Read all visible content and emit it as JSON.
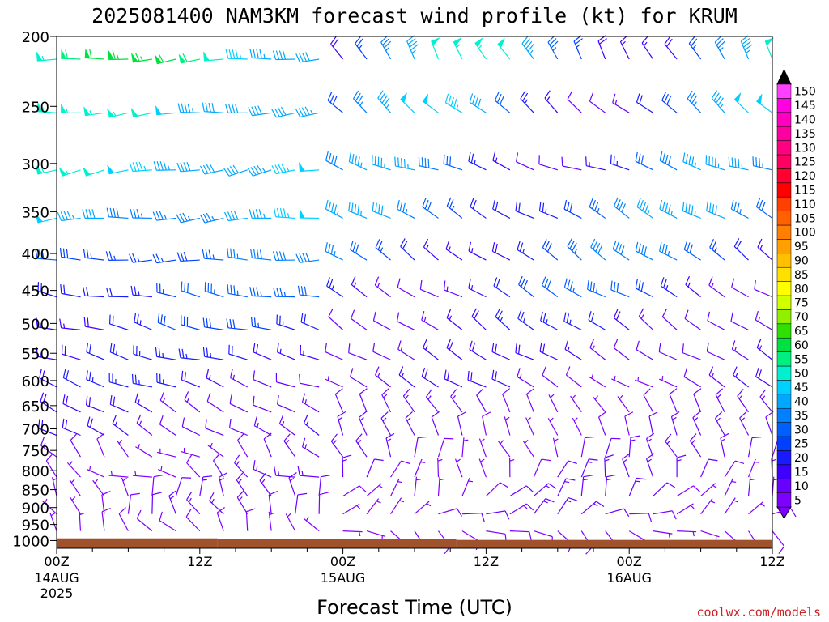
{
  "chart_data": {
    "type": "wind-barb-profile",
    "title": "2025081400 NAM3KM forecast wind profile (kt) for KRUM",
    "xlabel": "Forecast Time (UTC)",
    "ylabel": "",
    "credit": "coolwx.com/models",
    "units": "kt",
    "x_ticks": [
      {
        "hour": 0,
        "label": "00Z",
        "sub": "14AUG",
        "sub2": "2025"
      },
      {
        "hour": 12,
        "label": "12Z",
        "sub": "",
        "sub2": ""
      },
      {
        "hour": 24,
        "label": "00Z",
        "sub": "15AUG",
        "sub2": ""
      },
      {
        "hour": 36,
        "label": "12Z",
        "sub": "",
        "sub2": ""
      },
      {
        "hour": 48,
        "label": "00Z",
        "sub": "16AUG",
        "sub2": ""
      },
      {
        "hour": 60,
        "label": "12Z",
        "sub": "",
        "sub2": ""
      }
    ],
    "xlim_hours": [
      0,
      60
    ],
    "pressure_levels": [
      200,
      250,
      300,
      350,
      400,
      450,
      500,
      550,
      600,
      650,
      700,
      750,
      800,
      850,
      900,
      950,
      1000
    ],
    "ylim_hPa": [
      200,
      1025
    ],
    "colorbar_levels": [
      5,
      10,
      15,
      20,
      25,
      30,
      35,
      40,
      45,
      50,
      55,
      60,
      65,
      70,
      75,
      80,
      85,
      90,
      95,
      100,
      105,
      110,
      115,
      120,
      125,
      130,
      135,
      140,
      145,
      150
    ],
    "colorbar_colors": [
      "#8000ff",
      "#6a00ff",
      "#3f00ff",
      "#1a1aff",
      "#0040ff",
      "#0060ff",
      "#0080ff",
      "#00a8ff",
      "#00d0ff",
      "#00f0d0",
      "#00f080",
      "#00e040",
      "#30e000",
      "#90f000",
      "#d0ff00",
      "#ffff00",
      "#ffe000",
      "#ffc000",
      "#ffa000",
      "#ff8000",
      "#ff6000",
      "#ff4000",
      "#ff0000",
      "#ff0030",
      "#ff0060",
      "#ff0080",
      "#ff00a0",
      "#ff00c0",
      "#ff00e0",
      "#ff40ff"
    ],
    "ground_surface": [
      {
        "from_hour": 0,
        "to_hour": 13.5,
        "pressure_hPa": 993
      },
      {
        "from_hour": 13.5,
        "to_hour": 24.5,
        "pressure_hPa": 995
      },
      {
        "from_hour": 24.5,
        "to_hour": 33.5,
        "pressure_hPa": 996
      },
      {
        "from_hour": 33.5,
        "to_hour": 60,
        "pressure_hPa": 998
      }
    ],
    "wind_profile_summary": [
      {
        "pressure_hPa": 200,
        "hours_0_23_dir_deg": 265,
        "hours_0_23_speed_kt": [
          40,
          65
        ],
        "hours_24_60_dir_deg": 330,
        "hours_24_60_speed_kt": [
          15,
          55
        ]
      },
      {
        "pressure_hPa": 250,
        "hours_0_23_dir_deg": 265,
        "hours_0_23_speed_kt": [
          40,
          55
        ],
        "hours_24_60_dir_deg": 310,
        "hours_24_60_speed_kt": [
          10,
          50
        ]
      },
      {
        "pressure_hPa": 300,
        "hours_0_23_dir_deg": 260,
        "hours_0_23_speed_kt": [
          40,
          55
        ],
        "hours_24_60_dir_deg": 290,
        "hours_24_60_speed_kt": [
          10,
          45
        ]
      },
      {
        "pressure_hPa": 350,
        "hours_0_23_dir_deg": 265,
        "hours_0_23_speed_kt": [
          35,
          50
        ],
        "hours_24_60_dir_deg": 300,
        "hours_24_60_speed_kt": [
          20,
          45
        ]
      },
      {
        "pressure_hPa": 400,
        "hours_0_23_dir_deg": 270,
        "hours_0_23_speed_kt": [
          25,
          40
        ],
        "hours_24_60_dir_deg": 305,
        "hours_24_60_speed_kt": [
          15,
          40
        ]
      },
      {
        "pressure_hPa": 450,
        "hours_0_23_dir_deg": 280,
        "hours_0_23_speed_kt": [
          20,
          35
        ],
        "hours_24_60_dir_deg": 300,
        "hours_24_60_speed_kt": [
          10,
          35
        ]
      },
      {
        "pressure_hPa": 500,
        "hours_0_23_dir_deg": 285,
        "hours_0_23_speed_kt": [
          15,
          30
        ],
        "hours_24_60_dir_deg": 305,
        "hours_24_60_speed_kt": [
          10,
          25
        ]
      },
      {
        "pressure_hPa": 550,
        "hours_0_23_dir_deg": 285,
        "hours_0_23_speed_kt": [
          15,
          25
        ],
        "hours_24_60_dir_deg": 300,
        "hours_24_60_speed_kt": [
          10,
          20
        ]
      },
      {
        "pressure_hPa": 600,
        "hours_0_23_dir_deg": 290,
        "hours_0_23_speed_kt": [
          10,
          25
        ],
        "hours_24_60_dir_deg": 300,
        "hours_24_60_speed_kt": [
          5,
          20
        ]
      },
      {
        "pressure_hPa": 650,
        "hours_0_23_dir_deg": 300,
        "hours_0_23_speed_kt": [
          10,
          20
        ],
        "hours_24_60_dir_deg": 330,
        "hours_24_60_speed_kt": [
          5,
          15
        ]
      },
      {
        "pressure_hPa": 700,
        "hours_0_23_dir_deg": 300,
        "hours_0_23_speed_kt": [
          10,
          20
        ],
        "hours_24_60_dir_deg": 340,
        "hours_24_60_speed_kt": [
          5,
          15
        ]
      },
      {
        "pressure_hPa": 750,
        "hours_0_23_dir_deg": 310,
        "hours_0_23_speed_kt": [
          5,
          15
        ],
        "hours_24_60_dir_deg": 350,
        "hours_24_60_speed_kt": [
          5,
          15
        ]
      },
      {
        "pressure_hPa": 800,
        "hours_0_23_dir_deg": 300,
        "hours_0_23_speed_kt": [
          5,
          15
        ],
        "hours_24_60_dir_deg": 5,
        "hours_24_60_speed_kt": [
          5,
          15
        ]
      },
      {
        "pressure_hPa": 850,
        "hours_0_23_dir_deg": 350,
        "hours_0_23_speed_kt": [
          5,
          15
        ],
        "hours_24_60_dir_deg": 30,
        "hours_24_60_speed_kt": [
          5,
          15
        ]
      },
      {
        "pressure_hPa": 900,
        "hours_0_23_dir_deg": 340,
        "hours_0_23_speed_kt": [
          5,
          15
        ],
        "hours_24_60_dir_deg": 60,
        "hours_24_60_speed_kt": [
          5,
          15
        ]
      },
      {
        "pressure_hPa": 950,
        "hours_0_23_dir_deg": 330,
        "hours_0_23_speed_kt": [
          5,
          10
        ],
        "hours_24_60_dir_deg": 120,
        "hours_24_60_speed_kt": [
          5,
          10
        ]
      }
    ]
  }
}
